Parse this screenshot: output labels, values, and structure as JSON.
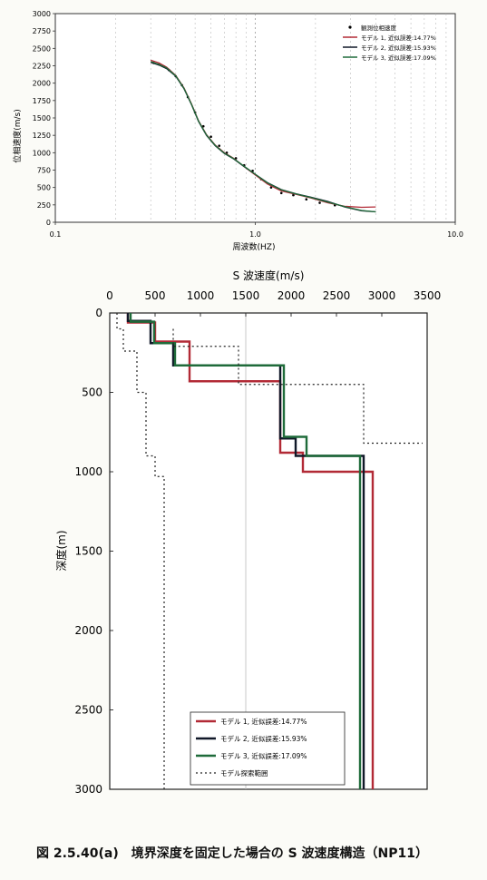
{
  "chart_data": [
    {
      "type": "line",
      "xlabel": "周波数(HZ)",
      "ylabel": "位相速度(m/s)",
      "xscale": "log",
      "xlim": [
        0.1,
        10.0
      ],
      "ylim": [
        0,
        3000
      ],
      "x_tick_labels": [
        "0.1",
        "1.0",
        "10.0"
      ],
      "y_tick_labels": [
        "0",
        "250",
        "500",
        "750",
        "1000",
        "1250",
        "1500",
        "1750",
        "2000",
        "2250",
        "2500",
        "2750",
        "3000"
      ],
      "grid": "vertical dashed",
      "legend_position": "top-right",
      "series": [
        {
          "name": "観測位相速度",
          "style": "points",
          "color": "#000000",
          "x": [
            0.31,
            0.33,
            0.35,
            0.37,
            0.4,
            0.43,
            0.46,
            0.5,
            0.55,
            0.6,
            0.66,
            0.72,
            0.8,
            0.88,
            0.97,
            1.07,
            1.2,
            1.35,
            1.55,
            1.8,
            2.1,
            2.5
          ],
          "y": [
            2290,
            2270,
            2240,
            2190,
            2100,
            1970,
            1800,
            1580,
            1380,
            1230,
            1100,
            1000,
            920,
            820,
            740,
            620,
            500,
            420,
            390,
            330,
            280,
            245
          ]
        },
        {
          "name": "モデル 1, 近似誤差:14.77%",
          "style": "line",
          "color": "#b22a36",
          "x": [
            0.3,
            0.33,
            0.36,
            0.4,
            0.44,
            0.48,
            0.52,
            0.57,
            0.63,
            0.7,
            0.78,
            0.88,
            1.0,
            1.15,
            1.35,
            1.6,
            1.9,
            2.3,
            2.8,
            3.4,
            4.0
          ],
          "y": [
            2330,
            2290,
            2230,
            2110,
            1930,
            1700,
            1460,
            1260,
            1110,
            1000,
            920,
            800,
            680,
            550,
            450,
            400,
            350,
            280,
            230,
            215,
            220
          ]
        },
        {
          "name": "モデル 2, 近似誤差:15.93%",
          "style": "line",
          "color": "#101828",
          "x": [
            0.3,
            0.33,
            0.36,
            0.4,
            0.44,
            0.48,
            0.52,
            0.57,
            0.63,
            0.7,
            0.78,
            0.88,
            1.0,
            1.15,
            1.35,
            1.6,
            1.9,
            2.3,
            2.8,
            3.4,
            4.0
          ],
          "y": [
            2300,
            2260,
            2210,
            2100,
            1920,
            1690,
            1450,
            1250,
            1100,
            990,
            910,
            800,
            690,
            570,
            470,
            410,
            360,
            300,
            220,
            165,
            150
          ]
        },
        {
          "name": "モデル 3, 近似誤差:17.09%",
          "style": "line",
          "color": "#1f6b3a",
          "x": [
            0.3,
            0.33,
            0.36,
            0.4,
            0.44,
            0.48,
            0.52,
            0.57,
            0.63,
            0.7,
            0.78,
            0.88,
            1.0,
            1.15,
            1.35,
            1.6,
            1.9,
            2.3,
            2.8,
            3.4,
            4.0
          ],
          "y": [
            2310,
            2270,
            2220,
            2105,
            1925,
            1695,
            1455,
            1255,
            1105,
            995,
            915,
            805,
            690,
            565,
            465,
            405,
            355,
            290,
            225,
            170,
            150
          ]
        }
      ]
    },
    {
      "type": "line",
      "title": "S 波速度(m/s)",
      "ylabel": "深度(m)",
      "xlim": [
        0,
        3500
      ],
      "ylim": [
        0,
        3000
      ],
      "y_inverted": true,
      "x_axis_position": "top",
      "x_tick_labels": [
        "0",
        "500",
        "1000",
        "1500",
        "2000",
        "2500",
        "3000",
        "3500"
      ],
      "y_tick_labels": [
        "0",
        "500",
        "1000",
        "1500",
        "2000",
        "2500",
        "3000"
      ],
      "grid": "vertical solid at 1500",
      "legend_position": "bottom-right",
      "series": [
        {
          "name": "モデル 1, 近似誤差:14.77%",
          "color": "#b22a36",
          "dash": "solid",
          "steps": [
            [
              200,
              0,
              60
            ],
            [
              500,
              60,
              180
            ],
            [
              880,
              180,
              430
            ],
            [
              1880,
              430,
              880
            ],
            [
              2130,
              880,
              1000
            ],
            [
              2900,
              1000,
              3000
            ]
          ]
        },
        {
          "name": "モデル 2, 近似誤差:15.93%",
          "color": "#101828",
          "dash": "solid",
          "steps": [
            [
              200,
              0,
              50
            ],
            [
              450,
              50,
              190
            ],
            [
              700,
              190,
              330
            ],
            [
              1880,
              330,
              790
            ],
            [
              2050,
              790,
              900
            ],
            [
              2800,
              900,
              3000
            ]
          ]
        },
        {
          "name": "モデル 3, 近似誤差:17.09%",
          "color": "#1f6b3a",
          "dash": "solid",
          "steps": [
            [
              230,
              0,
              55
            ],
            [
              490,
              55,
              190
            ],
            [
              720,
              190,
              330
            ],
            [
              1920,
              330,
              780
            ],
            [
              2170,
              780,
              900
            ],
            [
              2760,
              900,
              3000
            ]
          ]
        },
        {
          "name": "モデル探索範囲",
          "color": "#222222",
          "dash": "dotted",
          "steps": [
            [
              80,
              0,
              100
            ],
            [
              150,
              100,
              240
            ],
            [
              300,
              240,
              500
            ],
            [
              400,
              500,
              900
            ],
            [
              500,
              900,
              1030
            ],
            [
              600,
              1030,
              3000
            ]
          ]
        },
        {
          "name": "",
          "color": "#222222",
          "dash": "dotted",
          "steps": [
            [
              700,
              100,
              210
            ],
            [
              1400,
              100,
              210
            ],
            [
              1420,
              210,
              450
            ],
            [
              2100,
              210,
              450
            ],
            [
              2800,
              450,
              820
            ],
            [
              3450,
              820,
              820
            ]
          ]
        }
      ]
    }
  ],
  "caption": "図 2.5.40(a)　境界深度を固定した場合の S 波速度構造（NP11）"
}
